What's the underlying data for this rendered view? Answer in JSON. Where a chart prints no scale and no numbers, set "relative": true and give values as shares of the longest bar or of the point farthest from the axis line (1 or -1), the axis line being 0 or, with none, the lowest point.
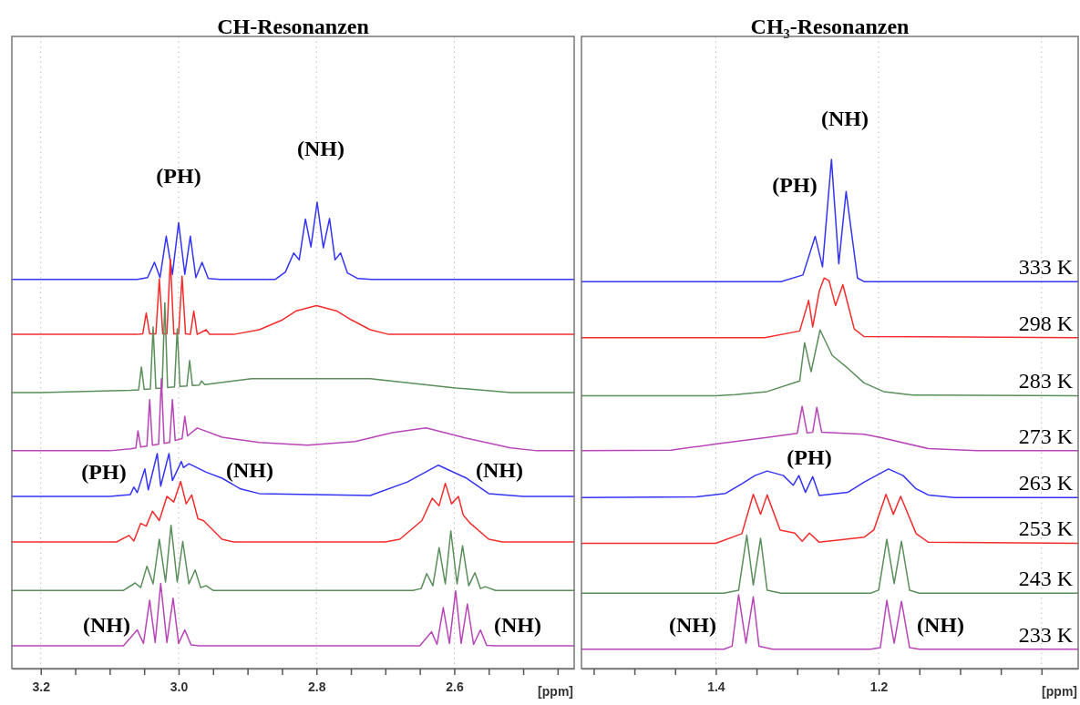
{
  "chart_data": [
    {
      "type": "line",
      "title": "CH-Resonanzen",
      "xlabel": "[ppm]",
      "relative": true,
      "grid": "x",
      "marker": "none",
      "line_style": "solid",
      "xlim": [
        3.242,
        2.426
      ],
      "xticks": [
        {
          "value": 3.2,
          "label": "3.2"
        },
        {
          "value": 3.15,
          "label": null
        },
        {
          "value": 3.1,
          "label": null
        },
        {
          "value": 3.05,
          "label": null
        },
        {
          "value": 3.0,
          "label": "3.0"
        },
        {
          "value": 2.95,
          "label": null
        },
        {
          "value": 2.9,
          "label": null
        },
        {
          "value": 2.85,
          "label": null
        },
        {
          "value": 2.8,
          "label": "2.8"
        },
        {
          "value": 2.75,
          "label": null
        },
        {
          "value": 2.7,
          "label": null
        },
        {
          "value": 2.65,
          "label": null
        },
        {
          "value": 2.6,
          "label": "2.6"
        },
        {
          "value": 2.55,
          "label": null
        },
        {
          "value": 2.5,
          "label": null
        },
        {
          "value": 2.45,
          "label": null
        }
      ],
      "series": [
        {
          "color": "#3434f4",
          "x": [
            3.242,
            3.06,
            3.045,
            3.035,
            3.027,
            3.018,
            3.009,
            3.0,
            2.991,
            2.983,
            2.975,
            2.966,
            2.957,
            2.94,
            2.86,
            2.845,
            2.833,
            2.825,
            2.816,
            2.808,
            2.799,
            2.79,
            2.781,
            2.773,
            2.765,
            2.755,
            2.74,
            2.72,
            2.426
          ],
          "values": [
            0.834,
            0.834,
            0.838,
            0.871,
            0.838,
            0.927,
            0.845,
            0.956,
            0.845,
            0.927,
            0.838,
            0.871,
            0.836,
            0.834,
            0.834,
            0.85,
            0.891,
            0.876,
            0.964,
            0.904,
            1.0,
            0.902,
            0.965,
            0.876,
            0.891,
            0.848,
            0.836,
            0.834,
            0.834
          ]
        },
        {
          "color": "#f42c2c",
          "x": [
            3.242,
            3.06,
            3.052,
            3.047,
            3.042,
            3.033,
            3.028,
            3.023,
            3.017,
            3.012,
            3.007,
            3.0,
            2.995,
            2.99,
            2.983,
            2.978,
            2.973,
            2.96,
            2.955,
            2.92,
            2.883,
            2.851,
            2.83,
            2.8,
            2.77,
            2.749,
            2.722,
            2.695,
            2.426
          ],
          "values": [
            0.716,
            0.716,
            0.717,
            0.762,
            0.717,
            0.717,
            0.835,
            0.717,
            0.717,
            0.878,
            0.717,
            0.717,
            0.841,
            0.717,
            0.716,
            0.766,
            0.716,
            0.726,
            0.716,
            0.716,
            0.726,
            0.746,
            0.766,
            0.778,
            0.766,
            0.747,
            0.726,
            0.716,
            0.716
          ]
        },
        {
          "color": "#5a8e5a",
          "x": [
            3.242,
            3.2,
            3.07,
            3.058,
            3.054,
            3.05,
            3.041,
            3.037,
            3.033,
            3.024,
            3.02,
            3.016,
            3.006,
            3.002,
            2.998,
            2.988,
            2.984,
            2.98,
            2.97,
            2.967,
            2.962,
            2.894,
            2.8,
            2.722,
            2.598,
            2.518,
            2.426
          ],
          "values": [
            0.591,
            0.591,
            0.596,
            0.597,
            0.646,
            0.598,
            0.599,
            0.732,
            0.6,
            0.601,
            0.784,
            0.602,
            0.603,
            0.728,
            0.604,
            0.605,
            0.66,
            0.606,
            0.607,
            0.616,
            0.608,
            0.621,
            0.621,
            0.621,
            0.601,
            0.591,
            0.591
          ]
        },
        {
          "color": "#b845b8",
          "x": [
            3.242,
            3.1,
            3.07,
            3.062,
            3.059,
            3.055,
            3.046,
            3.042,
            3.038,
            3.029,
            3.025,
            3.021,
            3.013,
            3.009,
            3.005,
            2.995,
            2.991,
            2.987,
            2.973,
            2.937,
            2.883,
            2.813,
            2.744,
            2.69,
            2.641,
            2.588,
            2.518,
            2.48,
            2.426
          ],
          "values": [
            0.466,
            0.466,
            0.47,
            0.472,
            0.509,
            0.474,
            0.476,
            0.576,
            0.478,
            0.48,
            0.621,
            0.482,
            0.484,
            0.576,
            0.488,
            0.492,
            0.54,
            0.498,
            0.515,
            0.495,
            0.484,
            0.478,
            0.486,
            0.505,
            0.515,
            0.495,
            0.472,
            0.466,
            0.466
          ]
        },
        {
          "color": "#3434f4",
          "x": [
            3.242,
            3.1,
            3.07,
            3.065,
            3.06,
            3.049,
            3.044,
            3.031,
            3.026,
            3.014,
            3.009,
            2.996,
            2.993,
            2.985,
            2.96,
            2.937,
            2.91,
            2.883,
            2.722,
            2.668,
            2.623,
            2.582,
            2.55,
            2.5,
            2.426
          ],
          "values": [
            0.368,
            0.368,
            0.372,
            0.388,
            0.376,
            0.427,
            0.382,
            0.46,
            0.39,
            0.46,
            0.402,
            0.443,
            0.43,
            0.438,
            0.42,
            0.407,
            0.384,
            0.374,
            0.37,
            0.399,
            0.435,
            0.407,
            0.374,
            0.368,
            0.368
          ]
        },
        {
          "color": "#f42c2c",
          "x": [
            3.242,
            3.09,
            3.072,
            3.065,
            3.055,
            3.047,
            3.038,
            3.028,
            3.017,
            3.007,
            2.997,
            2.989,
            2.981,
            2.972,
            2.964,
            2.937,
            2.92,
            2.7,
            2.679,
            2.647,
            2.632,
            2.622,
            2.613,
            2.604,
            2.594,
            2.587,
            2.578,
            2.55,
            2.53,
            2.426
          ],
          "values": [
            0.27,
            0.27,
            0.284,
            0.272,
            0.31,
            0.304,
            0.336,
            0.316,
            0.368,
            0.356,
            0.4,
            0.352,
            0.371,
            0.32,
            0.316,
            0.276,
            0.27,
            0.27,
            0.276,
            0.316,
            0.364,
            0.348,
            0.396,
            0.352,
            0.368,
            0.328,
            0.312,
            0.276,
            0.27,
            0.27
          ]
        },
        {
          "color": "#5a8e5a",
          "x": [
            3.242,
            3.08,
            3.063,
            3.055,
            3.046,
            3.037,
            3.028,
            3.019,
            3.011,
            3.002,
            2.994,
            2.985,
            2.976,
            2.968,
            2.96,
            2.95,
            2.66,
            2.648,
            2.64,
            2.631,
            2.622,
            2.613,
            2.605,
            2.596,
            2.588,
            2.579,
            2.57,
            2.562,
            2.555,
            2.54,
            2.426
          ],
          "values": [
            0.166,
            0.166,
            0.182,
            0.172,
            0.218,
            0.18,
            0.276,
            0.184,
            0.306,
            0.184,
            0.271,
            0.18,
            0.21,
            0.172,
            0.176,
            0.166,
            0.166,
            0.17,
            0.202,
            0.176,
            0.258,
            0.18,
            0.294,
            0.18,
            0.262,
            0.176,
            0.204,
            0.17,
            0.174,
            0.166,
            0.166
          ]
        },
        {
          "color": "#b845b8",
          "x": [
            3.242,
            3.08,
            3.06,
            3.051,
            3.042,
            3.034,
            3.026,
            3.017,
            3.008,
            3.0,
            2.991,
            2.982,
            2.97,
            2.65,
            2.633,
            2.625,
            2.616,
            2.607,
            2.598,
            2.59,
            2.581,
            2.572,
            2.562,
            2.553,
            2.54,
            2.426
          ],
          "values": [
            0.047,
            0.047,
            0.081,
            0.052,
            0.145,
            0.054,
            0.181,
            0.054,
            0.149,
            0.052,
            0.081,
            0.049,
            0.047,
            0.047,
            0.077,
            0.05,
            0.129,
            0.052,
            0.165,
            0.052,
            0.137,
            0.05,
            0.081,
            0.048,
            0.047,
            0.047
          ]
        }
      ],
      "annotations": [
        "(PH)",
        "(NH)",
        "(PH)",
        "(NH)",
        "(NH)",
        "(NH)",
        "(NH)"
      ]
    },
    {
      "type": "line",
      "title": "CH₃-Resonanzen",
      "xlabel": "[ppm]",
      "relative": true,
      "grid": "x",
      "marker": "none",
      "line_style": "solid",
      "xlim": [
        1.565,
        0.955
      ],
      "xticks": [
        {
          "value": 1.55,
          "label": null
        },
        {
          "value": 1.5,
          "label": null
        },
        {
          "value": 1.45,
          "label": null
        },
        {
          "value": 1.4,
          "label": "1.4"
        },
        {
          "value": 1.35,
          "label": null
        },
        {
          "value": 1.3,
          "label": null
        },
        {
          "value": 1.25,
          "label": null
        },
        {
          "value": 1.2,
          "label": "1.2"
        },
        {
          "value": 1.15,
          "label": null
        },
        {
          "value": 1.1,
          "label": null
        },
        {
          "value": 1.05,
          "label": null
        },
        {
          "value": 1.0,
          "label": null
        }
      ],
      "series": [
        {
          "name": "333 K",
          "color": "#3434f4",
          "x": [
            1.565,
            1.32,
            1.293,
            1.278,
            1.269,
            1.258,
            1.249,
            1.24,
            1.226,
            1.218,
            0.955
          ],
          "values": [
            0.76,
            0.76,
            0.773,
            0.849,
            0.789,
            1.0,
            0.795,
            0.937,
            0.767,
            0.76,
            0.76
          ]
        },
        {
          "name": "298 K",
          "color": "#f42c2c",
          "x": [
            1.565,
            1.34,
            1.297,
            1.286,
            1.281,
            1.273,
            1.267,
            1.261,
            1.253,
            1.244,
            1.23,
            1.218,
            0.955
          ],
          "values": [
            0.65,
            0.65,
            0.663,
            0.723,
            0.671,
            0.741,
            0.767,
            0.762,
            0.713,
            0.754,
            0.667,
            0.652,
            0.65
          ]
        },
        {
          "name": "283 K",
          "color": "#5a8e5a",
          "x": [
            1.565,
            1.4,
            1.376,
            1.337,
            1.297,
            1.291,
            1.283,
            1.272,
            1.257,
            1.238,
            1.218,
            1.194,
            1.158,
            0.955
          ],
          "values": [
            0.536,
            0.536,
            0.538,
            0.544,
            0.565,
            0.64,
            0.583,
            0.665,
            0.615,
            0.59,
            0.561,
            0.544,
            0.537,
            0.536
          ]
        },
        {
          "name": "273 K",
          "color": "#b845b8",
          "x": [
            1.565,
            1.455,
            1.396,
            1.337,
            1.3,
            1.294,
            1.288,
            1.281,
            1.276,
            1.27,
            1.218,
            1.198,
            1.139,
            1.079,
            0.955
          ],
          "values": [
            0.428,
            0.429,
            0.442,
            0.454,
            0.462,
            0.515,
            0.463,
            0.464,
            0.513,
            0.464,
            0.46,
            0.454,
            0.432,
            0.428,
            0.428
          ]
        },
        {
          "name": "263 K",
          "color": "#3434f4",
          "x": [
            1.565,
            1.424,
            1.388,
            1.368,
            1.352,
            1.337,
            1.317,
            1.305,
            1.298,
            1.29,
            1.281,
            1.273,
            1.238,
            1.218,
            1.188,
            1.17,
            1.154,
            1.139,
            1.107,
            0.955
          ],
          "values": [
            0.336,
            0.337,
            0.344,
            0.363,
            0.379,
            0.388,
            0.379,
            0.36,
            0.379,
            0.346,
            0.377,
            0.34,
            0.346,
            0.366,
            0.392,
            0.379,
            0.353,
            0.341,
            0.336,
            0.336
          ]
        },
        {
          "name": "253 K",
          "color": "#f42c2c",
          "x": [
            1.565,
            1.4,
            1.368,
            1.354,
            1.345,
            1.337,
            1.321,
            1.303,
            1.294,
            1.285,
            1.273,
            1.218,
            1.206,
            1.191,
            1.182,
            1.173,
            1.154,
            1.139,
            0.955
          ],
          "values": [
            0.246,
            0.246,
            0.265,
            0.342,
            0.303,
            0.341,
            0.272,
            0.266,
            0.25,
            0.266,
            0.248,
            0.258,
            0.272,
            0.342,
            0.303,
            0.338,
            0.265,
            0.248,
            0.246
          ]
        },
        {
          "name": "243 K",
          "color": "#5a8e5a",
          "x": [
            1.565,
            1.39,
            1.372,
            1.362,
            1.354,
            1.345,
            1.337,
            1.32,
            1.21,
            1.2,
            1.19,
            1.181,
            1.172,
            1.162,
            1.15,
            0.955
          ],
          "values": [
            0.148,
            0.148,
            0.154,
            0.262,
            0.164,
            0.256,
            0.154,
            0.148,
            0.148,
            0.154,
            0.254,
            0.167,
            0.25,
            0.154,
            0.148,
            0.148
          ]
        },
        {
          "name": "233 K",
          "color": "#b845b8",
          "x": [
            1.565,
            1.39,
            1.38,
            1.372,
            1.363,
            1.354,
            1.347,
            1.33,
            1.21,
            1.198,
            1.19,
            1.181,
            1.172,
            1.162,
            1.15,
            0.955
          ],
          "values": [
            0.038,
            0.038,
            0.044,
            0.145,
            0.05,
            0.141,
            0.044,
            0.038,
            0.038,
            0.041,
            0.134,
            0.05,
            0.132,
            0.041,
            0.038,
            0.038
          ]
        }
      ],
      "annotations": [
        "(NH)",
        "(PH)",
        "(PH)",
        "(NH)",
        "(NH)"
      ]
    }
  ]
}
